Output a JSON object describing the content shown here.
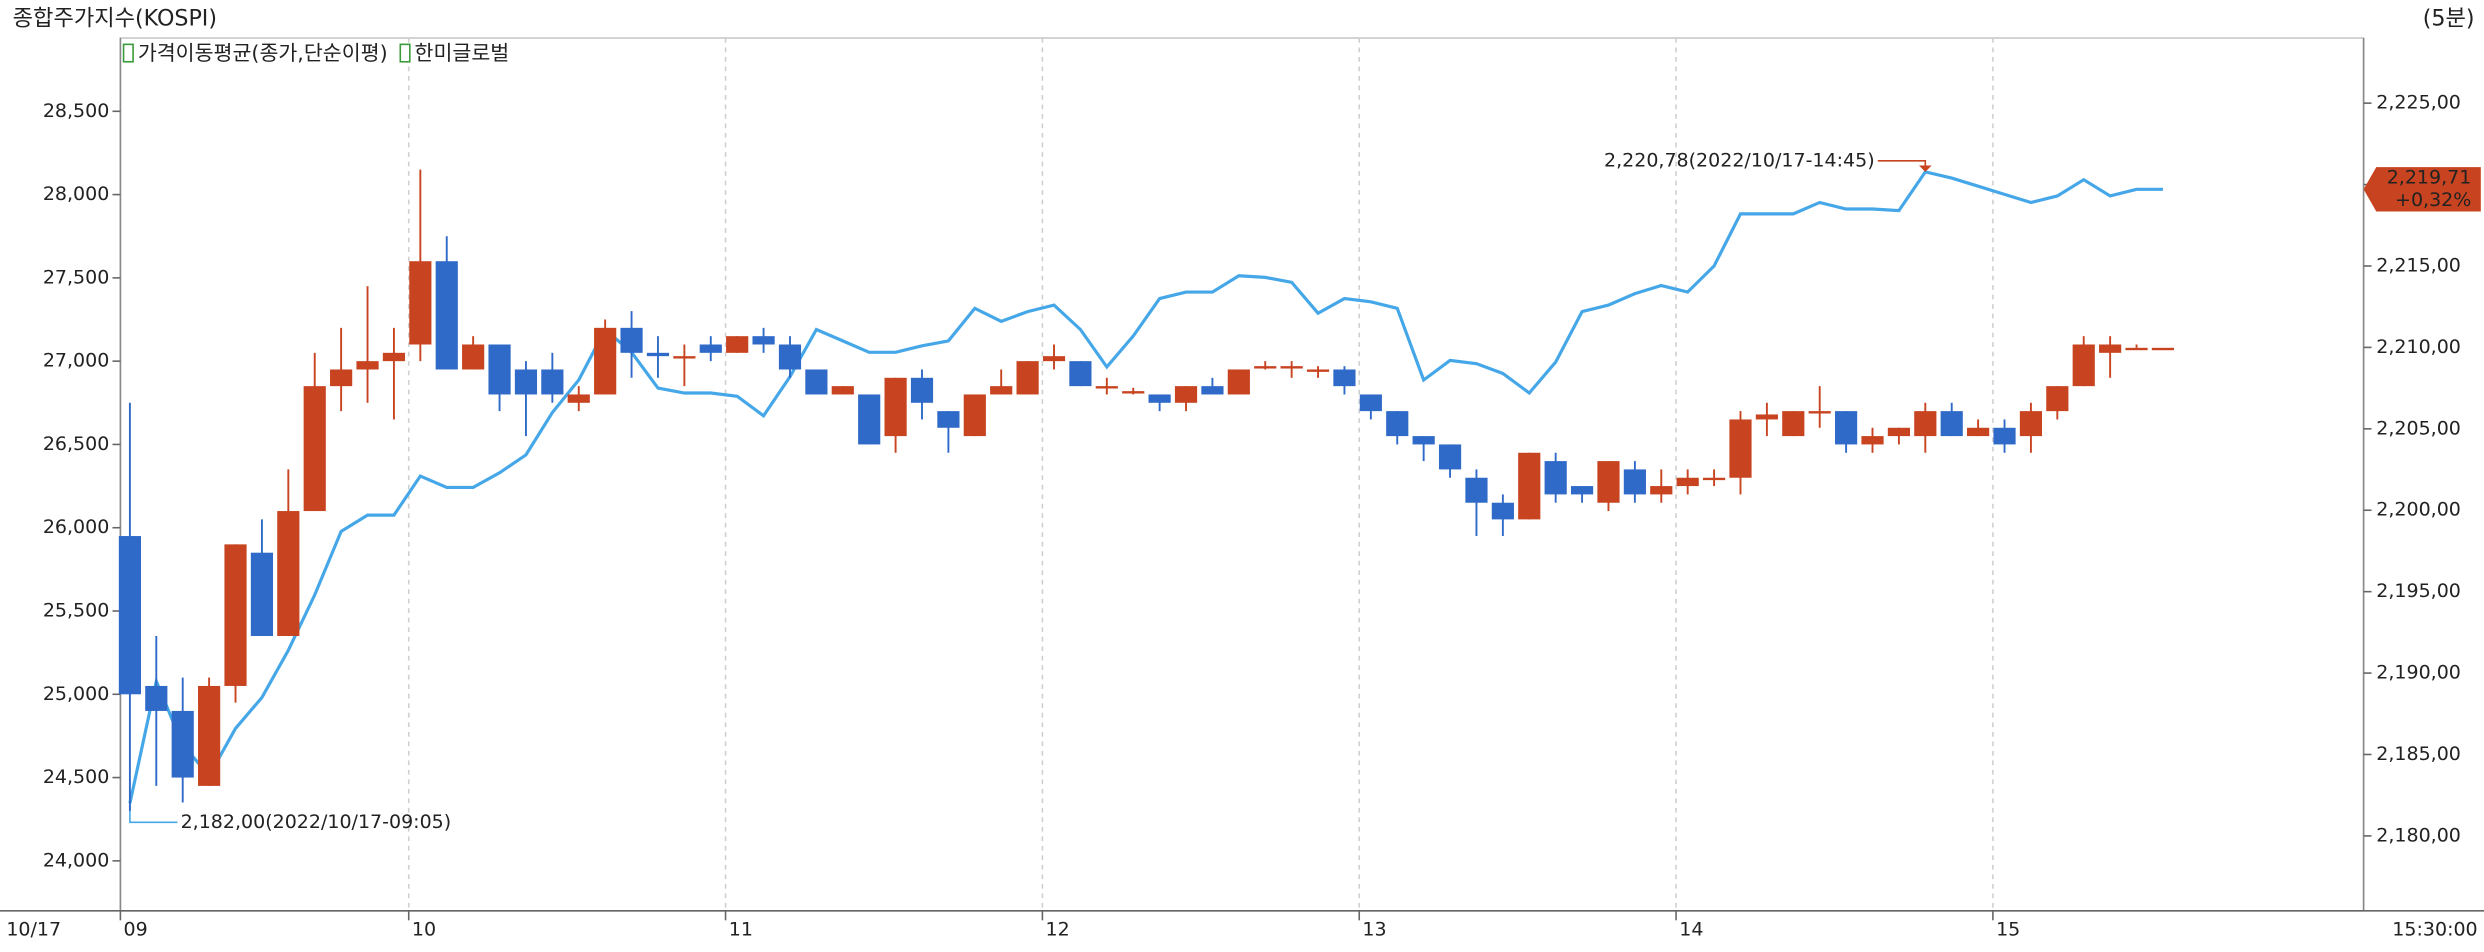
{
  "chart_data": {
    "type": "candlestick",
    "title": "종합주가지수(KOSPI)",
    "interval_label": "(5분)",
    "date_label": "10/17",
    "end_time_label": "15:30:00",
    "x_labels": [
      "09",
      "10",
      "11",
      "12",
      "13",
      "14",
      "15"
    ],
    "categories": [
      null,
      null,
      null,
      null,
      null,
      null,
      null,
      null,
      null,
      null,
      null,
      null,
      null,
      null,
      null,
      null,
      null,
      null,
      null,
      null,
      null,
      null,
      null,
      null,
      null,
      null,
      null,
      null,
      null,
      null,
      null,
      null,
      null,
      null,
      null,
      null,
      null,
      null,
      null,
      null,
      null,
      null,
      null,
      null,
      null,
      null,
      null,
      null,
      null,
      null,
      null,
      null,
      null,
      null,
      null,
      null,
      null,
      null,
      null,
      null,
      null,
      null,
      null,
      null,
      null,
      null,
      null,
      null,
      null,
      null,
      null,
      null,
      null,
      null,
      null,
      null,
      null,
      null
    ],
    "ylim": [
      23700,
      28940
    ],
    "yticks": [
      {
        "value": 24000,
        "label": "24,000"
      },
      {
        "value": 24500,
        "label": "24,500"
      },
      {
        "value": 25000,
        "label": "25,000"
      },
      {
        "value": 25500,
        "label": "25,500"
      },
      {
        "value": 26000,
        "label": "26,000"
      },
      {
        "value": 26500,
        "label": "26,500"
      },
      {
        "value": 27000,
        "label": "27,000"
      },
      {
        "value": 27500,
        "label": "27,500"
      },
      {
        "value": 28000,
        "label": "28,000"
      },
      {
        "value": 28500,
        "label": "28,500"
      }
    ],
    "y2lim": [
      2175.4,
      2229.0
    ],
    "y2ticks": [
      {
        "value": 2180,
        "label": "2,180,00"
      },
      {
        "value": 2185,
        "label": "2,185,00"
      },
      {
        "value": 2190,
        "label": "2,190,00"
      },
      {
        "value": 2195,
        "label": "2,195,00"
      },
      {
        "value": 2200,
        "label": "2,200,00"
      },
      {
        "value": 2205,
        "label": "2,205,00"
      },
      {
        "value": 2210,
        "label": "2,210,00"
      },
      {
        "value": 2215,
        "label": "2,215,00"
      },
      {
        "value": 2220,
        "label": "2,220,00"
      },
      {
        "value": 2225,
        "label": "2,225,00"
      }
    ],
    "grid": true,
    "series": [
      {
        "name": "가격이동평균(종가,단순이평)",
        "type": "line",
        "axis": "y2",
        "color": "#45a7e8",
        "legend_color": "#222222",
        "values": [
          2182.0,
          2189.5,
          2185.6,
          2183.7,
          2186.6,
          2188.5,
          2191.4,
          2194.8,
          2198.7,
          2199.7,
          2199.7,
          2202.1,
          2201.4,
          2201.4,
          2202.3,
          2203.4,
          2206.0,
          2208.0,
          2211.1,
          2209.7,
          2207.5,
          2207.2,
          2207.2,
          2207.0,
          2205.8,
          2208.2,
          2211.1,
          2210.4,
          2209.7,
          2209.7,
          2210.1,
          2210.4,
          2212.4,
          2211.6,
          2212.2,
          2212.6,
          2211.1,
          2208.8,
          2210.7,
          2213.0,
          2213.4,
          2213.4,
          2214.4,
          2214.3,
          2214.0,
          2212.1,
          2213.0,
          2212.8,
          2212.4,
          2208.0,
          2209.2,
          2209.0,
          2208.4,
          2207.2,
          2209.1,
          2212.2,
          2212.6,
          2213.3,
          2213.8,
          2213.4,
          2215.0,
          2218.2,
          2218.2,
          2218.2,
          2218.9,
          2218.5,
          2218.5,
          2218.4,
          2220.78,
          2220.4,
          2219.9,
          2219.4,
          2218.9,
          2219.3,
          2220.3,
          2219.3,
          2219.71,
          2219.71
        ],
        "min_label": "2,182,00(2022/10/17-09:05)",
        "max_label": "2,220,78(2022/10/17-14:45)",
        "last_label": "2,219,71",
        "change_label": "+0,32%"
      },
      {
        "name": "한미글로벌",
        "type": "candlestick",
        "legend_color": "#d020d0",
        "up_color": "#c8431f",
        "down_color": "#2f6ac8",
        "open": [
          25950,
          25050,
          24900,
          24450,
          25050,
          25850,
          25350,
          26100,
          26850,
          26950,
          27000,
          27100,
          27600,
          26950,
          27100,
          26950,
          26950,
          26750,
          26800,
          27200,
          27050,
          27030,
          27100,
          27050,
          27150,
          27100,
          26950,
          26800,
          26800,
          26550,
          26900,
          26700,
          26550,
          26800,
          26800,
          27000,
          27000,
          26850,
          26820,
          26800,
          26750,
          26850,
          26800,
          26970,
          26970,
          26950,
          26950,
          26800,
          26700,
          26550,
          26500,
          26300,
          26150,
          26050,
          26400,
          26250,
          26150,
          26350,
          26200,
          26250,
          26300,
          26300,
          26650,
          26550,
          26700,
          26700,
          26500,
          26550,
          26550,
          26700,
          26550,
          26600,
          26550,
          26700,
          26850,
          27050,
          27080,
          27080
        ],
        "high": [
          26750,
          25350,
          25100,
          25100,
          25900,
          26050,
          26350,
          27050,
          27200,
          27450,
          27200,
          28150,
          27750,
          27150,
          27100,
          27000,
          27050,
          26850,
          27250,
          27300,
          27150,
          27100,
          27150,
          27150,
          27200,
          27150,
          26950,
          26850,
          26800,
          26900,
          26950,
          26700,
          26800,
          26950,
          27000,
          27100,
          27000,
          26900,
          26840,
          26800,
          26850,
          26900,
          26950,
          27000,
          27000,
          26970,
          26970,
          26800,
          26700,
          26550,
          26500,
          26350,
          26200,
          26450,
          26450,
          26250,
          26400,
          26400,
          26350,
          26350,
          26350,
          26700,
          26750,
          26700,
          26850,
          26700,
          26600,
          26600,
          26750,
          26750,
          26650,
          26650,
          26750,
          26850,
          27150,
          27150,
          27100,
          27080
        ],
        "low": [
          24300,
          24450,
          24350,
          24450,
          24950,
          25350,
          25350,
          26100,
          26700,
          26750,
          26650,
          27000,
          26950,
          26950,
          26700,
          26550,
          26750,
          26700,
          26800,
          26900,
          26900,
          26850,
          27000,
          27050,
          27050,
          26900,
          26800,
          26800,
          26500,
          26450,
          26650,
          26450,
          26550,
          26800,
          26800,
          26950,
          26850,
          26800,
          26800,
          26700,
          26700,
          26800,
          26800,
          26950,
          26900,
          26900,
          26800,
          26650,
          26500,
          26400,
          26300,
          25950,
          25950,
          26050,
          26150,
          26150,
          26100,
          26150,
          26150,
          26200,
          26250,
          26200,
          26550,
          26550,
          26600,
          26450,
          26450,
          26500,
          26450,
          26550,
          26550,
          26450,
          26450,
          26650,
          26850,
          26900,
          27080,
          27080
        ],
        "close": [
          25000,
          24900,
          24500,
          25050,
          25900,
          25350,
          26100,
          26850,
          26950,
          27000,
          27050,
          27600,
          26950,
          27100,
          26800,
          26800,
          26800,
          26800,
          27200,
          27050,
          27030,
          27030,
          27050,
          27150,
          27100,
          26950,
          26800,
          26850,
          26500,
          26900,
          26750,
          26600,
          26800,
          26850,
          27000,
          27030,
          26850,
          26850,
          26820,
          26750,
          26850,
          26800,
          26950,
          26970,
          26970,
          26950,
          26850,
          26700,
          26550,
          26500,
          26350,
          26150,
          26050,
          26450,
          26200,
          26200,
          26400,
          26200,
          26250,
          26300,
          26300,
          26650,
          26680,
          26700,
          26700,
          26500,
          26550,
          26600,
          26700,
          26550,
          26600,
          26500,
          26700,
          26850,
          27100,
          27100,
          27080,
          27080
        ]
      }
    ]
  }
}
